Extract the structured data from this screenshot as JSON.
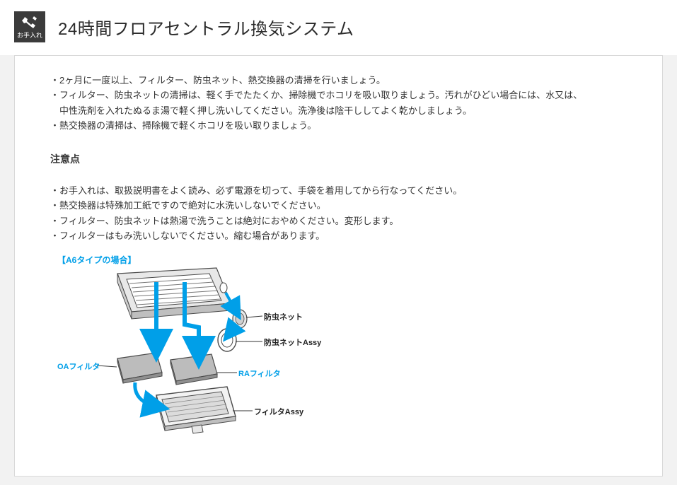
{
  "header": {
    "icon_label": "お手入れ",
    "title": "24時間フロアセントラル換気システム"
  },
  "intro_bullets": [
    "2ヶ月に一度以上、フィルター、防虫ネット、熱交換器の清掃を行いましょう。",
    "フィルター、防虫ネットの清掃は、軽く手でたたくか、掃除機でホコリを吸い取りましょう。汚れがひどい場合には、水又は、",
    "中性洗剤を入れたぬるま湯で軽く押し洗いしてください。洗浄後は陰干ししてよく乾かしましょう。",
    "熱交換器の清掃は、掃除機で軽くホコリを吸い取りましょう。"
  ],
  "intro_indent_indexes": [
    2
  ],
  "subheading": "注意点",
  "caution_bullets": [
    "お手入れは、取扱説明書をよく読み、必ず電源を切って、手袋を着用してから行なってください。",
    "熱交換器は特殊加工紙ですので絶対に水洗いしないでください。",
    "フィルター、防虫ネットは熱湯で洗うことは絶対におやめください。変形します。",
    "フィルターはもみ洗いしないでください。縮む場合があります。"
  ],
  "diagram": {
    "heading": "【A6タイプの場合】",
    "labels": {
      "insect_net": "防虫ネット",
      "insect_net_assy": "防虫ネットAssy",
      "oa_filter": "OAフィルタ",
      "ra_filter": "RAフィルタ",
      "filter_assy": "フィルタAssy"
    },
    "colors": {
      "accent": "#009fe8",
      "line": "#666666",
      "panel_fill": "#d6d6d6",
      "panel_fill_dark": "#b8b8b8",
      "panel_stroke": "#4a4a4a",
      "bg": "#ffffff",
      "text_black": "#222222"
    }
  },
  "layout_colors": {
    "page_bg": "#f2f2f2",
    "panel_bg": "#ffffff",
    "panel_border": "#d9d9d9",
    "icon_box_bg": "#3b3b3b",
    "text": "#333333"
  }
}
